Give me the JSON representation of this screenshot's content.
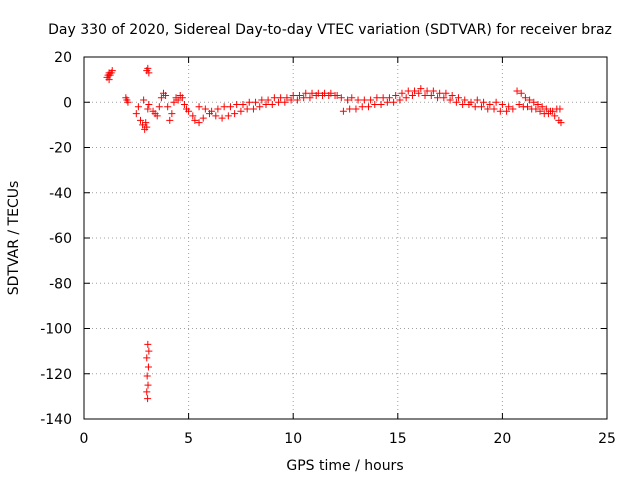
{
  "chart_data": {
    "type": "scatter",
    "title": "Day 330 of 2020, Sidereal Day-to-day VTEC variation (SDTVAR) for receiver braz",
    "xlabel": "GPS time / hours",
    "ylabel": "SDTVAR / TECUs",
    "xlim": [
      0,
      25
    ],
    "ylim": [
      -140,
      20
    ],
    "xticks": [
      0,
      5,
      10,
      15,
      20,
      25
    ],
    "yticks": [
      -140,
      -120,
      -100,
      -80,
      -60,
      -40,
      -20,
      0,
      20
    ],
    "grid": true,
    "marker": "+",
    "color": "#ff0000",
    "series": [
      {
        "name": "SDTVAR",
        "points": [
          [
            1.1,
            11
          ],
          [
            1.15,
            12
          ],
          [
            1.2,
            13
          ],
          [
            1.25,
            12
          ],
          [
            1.3,
            13
          ],
          [
            1.35,
            14
          ],
          [
            1.2,
            10
          ],
          [
            2.0,
            2
          ],
          [
            2.05,
            1
          ],
          [
            2.1,
            0
          ],
          [
            2.5,
            -5
          ],
          [
            2.6,
            -2
          ],
          [
            2.7,
            -8
          ],
          [
            2.8,
            -10
          ],
          [
            2.9,
            -12
          ],
          [
            2.95,
            -9
          ],
          [
            3.0,
            -11
          ],
          [
            3.05,
            -3
          ],
          [
            3.1,
            -1
          ],
          [
            2.85,
            1
          ],
          [
            3.0,
            14
          ],
          [
            3.05,
            15
          ],
          [
            3.1,
            13
          ],
          [
            3.3,
            -4
          ],
          [
            3.4,
            -5
          ],
          [
            3.5,
            -6
          ],
          [
            3.6,
            -2
          ],
          [
            3.7,
            2
          ],
          [
            3.8,
            4
          ],
          [
            3.9,
            3
          ],
          [
            4.0,
            -2
          ],
          [
            4.1,
            -8
          ],
          [
            4.2,
            -5
          ],
          [
            4.3,
            0
          ],
          [
            4.4,
            2
          ],
          [
            4.5,
            1
          ],
          [
            4.6,
            3
          ],
          [
            4.7,
            2
          ],
          [
            4.8,
            -1
          ],
          [
            4.9,
            -3
          ],
          [
            5.0,
            -4
          ],
          [
            5.2,
            -6
          ],
          [
            5.3,
            -8
          ],
          [
            5.5,
            -9
          ],
          [
            5.7,
            -7
          ],
          [
            6.0,
            -5
          ],
          [
            6.3,
            -6
          ],
          [
            6.6,
            -7
          ],
          [
            6.9,
            -6
          ],
          [
            7.2,
            -5
          ],
          [
            7.5,
            -4
          ],
          [
            7.8,
            -3
          ],
          [
            8.1,
            -3
          ],
          [
            8.4,
            -2
          ],
          [
            8.7,
            -1
          ],
          [
            9.0,
            -1
          ],
          [
            9.3,
            0
          ],
          [
            9.6,
            0
          ],
          [
            9.9,
            1
          ],
          [
            10.2,
            1
          ],
          [
            10.5,
            2
          ],
          [
            10.8,
            2
          ],
          [
            11.1,
            3
          ],
          [
            11.4,
            3
          ],
          [
            11.7,
            3
          ],
          [
            12.0,
            3
          ],
          [
            12.3,
            2
          ],
          [
            12.6,
            1
          ],
          [
            5.5,
            -2
          ],
          [
            5.8,
            -3
          ],
          [
            6.1,
            -4
          ],
          [
            6.4,
            -3
          ],
          [
            6.7,
            -2
          ],
          [
            7.0,
            -2
          ],
          [
            7.3,
            -1
          ],
          [
            7.6,
            -1
          ],
          [
            7.9,
            0
          ],
          [
            8.2,
            0
          ],
          [
            8.5,
            1
          ],
          [
            8.8,
            1
          ],
          [
            9.1,
            2
          ],
          [
            9.4,
            2
          ],
          [
            9.7,
            2
          ],
          [
            10.0,
            3
          ],
          [
            10.3,
            3
          ],
          [
            10.6,
            4
          ],
          [
            10.9,
            4
          ],
          [
            11.2,
            4
          ],
          [
            11.5,
            4
          ],
          [
            11.8,
            4
          ],
          [
            12.1,
            3
          ],
          [
            12.4,
            -4
          ],
          [
            12.7,
            -3
          ],
          [
            13.0,
            -3
          ],
          [
            13.3,
            -2
          ],
          [
            13.6,
            -2
          ],
          [
            13.9,
            -1
          ],
          [
            14.2,
            -1
          ],
          [
            14.5,
            0
          ],
          [
            14.8,
            0
          ],
          [
            15.1,
            1
          ],
          [
            15.4,
            2
          ],
          [
            15.7,
            3
          ],
          [
            16.0,
            4
          ],
          [
            16.3,
            3
          ],
          [
            16.6,
            3
          ],
          [
            16.9,
            2
          ],
          [
            12.8,
            2
          ],
          [
            13.1,
            1
          ],
          [
            13.4,
            1
          ],
          [
            13.7,
            1
          ],
          [
            14.0,
            2
          ],
          [
            14.3,
            2
          ],
          [
            14.6,
            2
          ],
          [
            14.9,
            3
          ],
          [
            15.2,
            4
          ],
          [
            15.5,
            5
          ],
          [
            15.8,
            5
          ],
          [
            16.1,
            6
          ],
          [
            16.4,
            5
          ],
          [
            16.7,
            5
          ],
          [
            17.0,
            4
          ],
          [
            17.3,
            4
          ],
          [
            17.6,
            3
          ],
          [
            17.9,
            2
          ],
          [
            18.2,
            1
          ],
          [
            18.5,
            0
          ],
          [
            17.2,
            2
          ],
          [
            17.5,
            1
          ],
          [
            17.8,
            0
          ],
          [
            18.1,
            -1
          ],
          [
            18.4,
            -1
          ],
          [
            18.7,
            -2
          ],
          [
            19.0,
            -2
          ],
          [
            19.3,
            -3
          ],
          [
            19.6,
            -3
          ],
          [
            19.9,
            -4
          ],
          [
            20.2,
            -4
          ],
          [
            18.8,
            1
          ],
          [
            19.1,
            0
          ],
          [
            19.4,
            -1
          ],
          [
            19.7,
            0
          ],
          [
            20.0,
            -1
          ],
          [
            20.3,
            -2
          ],
          [
            20.5,
            -3
          ],
          [
            20.7,
            5
          ],
          [
            20.9,
            4
          ],
          [
            21.1,
            2
          ],
          [
            21.3,
            1
          ],
          [
            21.5,
            0
          ],
          [
            21.7,
            -1
          ],
          [
            21.9,
            -2
          ],
          [
            22.1,
            -3
          ],
          [
            22.3,
            -4
          ],
          [
            22.5,
            -6
          ],
          [
            22.7,
            -8
          ],
          [
            22.8,
            -9
          ],
          [
            20.8,
            -1
          ],
          [
            21.0,
            -2
          ],
          [
            21.2,
            -2
          ],
          [
            21.4,
            -3
          ],
          [
            21.6,
            -3
          ],
          [
            21.8,
            -4
          ],
          [
            22.0,
            -5
          ],
          [
            22.2,
            -5
          ],
          [
            22.4,
            -4
          ],
          [
            22.6,
            -3
          ],
          [
            22.75,
            -3
          ],
          [
            3.05,
            -107
          ],
          [
            3.1,
            -110
          ],
          [
            3.0,
            -113
          ],
          [
            3.08,
            -117
          ],
          [
            3.02,
            -121
          ],
          [
            3.06,
            -125
          ],
          [
            3.0,
            -128
          ],
          [
            3.04,
            -131
          ]
        ]
      }
    ]
  }
}
